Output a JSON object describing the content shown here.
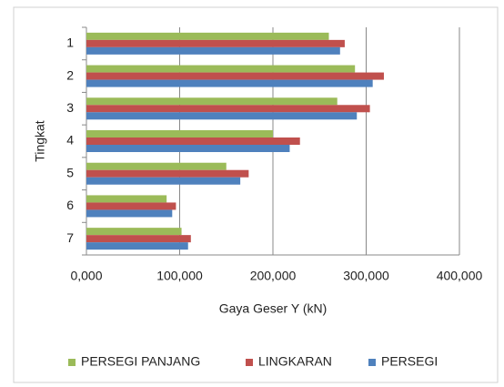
{
  "chart_data": {
    "type": "bar",
    "orientation": "horizontal",
    "xlabel": "Gaya Geser Y (kN)",
    "ylabel": "Tingkat",
    "categories": [
      "1",
      "2",
      "3",
      "4",
      "5",
      "6",
      "7"
    ],
    "series": [
      {
        "name": "PERSEGI PANJANG",
        "color": "#9bbb59",
        "values": [
          260000,
          288000,
          269000,
          200000,
          150000,
          86000,
          102000
        ]
      },
      {
        "name": "LINGKARAN",
        "color": "#c0504d",
        "values": [
          277000,
          319000,
          304000,
          229000,
          174000,
          96000,
          112000
        ]
      },
      {
        "name": "PERSEGI",
        "color": "#4f81bd",
        "values": [
          272000,
          307000,
          290000,
          218000,
          165000,
          92000,
          109000
        ]
      }
    ],
    "xlim": [
      0,
      400000
    ],
    "xticks": [
      {
        "value": 0,
        "label": "0,000"
      },
      {
        "value": 100000,
        "label": "100,000"
      },
      {
        "value": 200000,
        "label": "200,000"
      },
      {
        "value": 300000,
        "label": "300,000"
      },
      {
        "value": 400000,
        "label": "400,000"
      }
    ],
    "grid": true,
    "legend": "bottom"
  }
}
